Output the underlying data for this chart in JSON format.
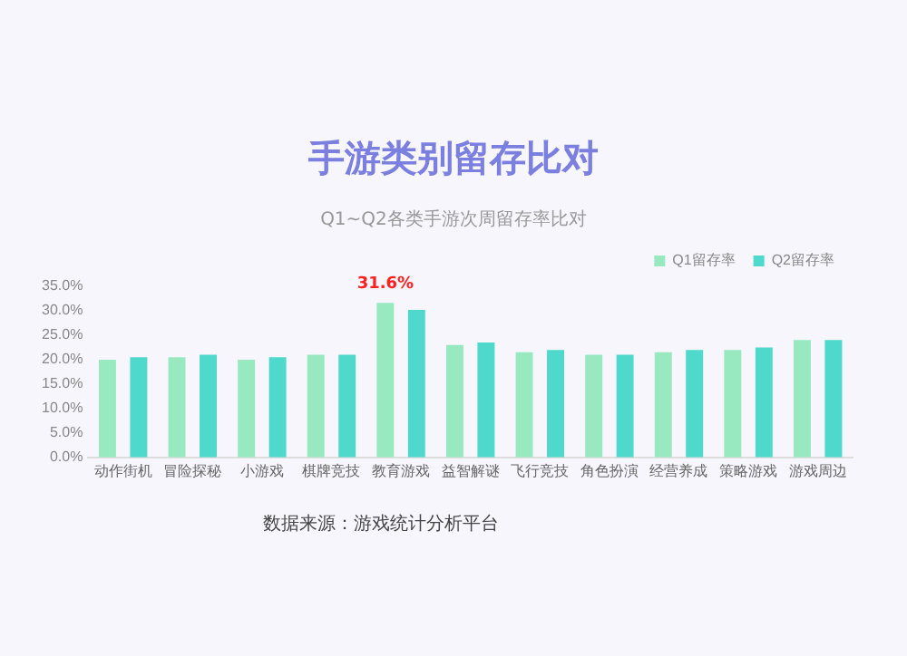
{
  "chart_data": {
    "type": "bar",
    "title": "手游类别留存比对",
    "subtitle": "Q1~Q2各类手游次周留存率比对",
    "categories": [
      "动作街机",
      "冒险探秘",
      "小游戏",
      "棋牌竞技",
      "教育游戏",
      "益智解谜",
      "飞行竞技",
      "角色扮演",
      "经营养成",
      "策略游戏",
      "游戏周边"
    ],
    "series": [
      {
        "name": "Q1留存率",
        "color": "#98e9c0",
        "values": [
          20,
          20.5,
          20,
          21,
          31.6,
          23,
          21.5,
          21,
          21.5,
          22,
          24
        ],
        "value_labels": [
          null,
          null,
          null,
          null,
          "31.6%",
          null,
          null,
          null,
          null,
          null,
          null
        ]
      },
      {
        "name": "Q2留存率",
        "color": "#4fd8cc",
        "values": [
          20.5,
          21,
          20.5,
          21,
          30.2,
          23.5,
          22,
          21,
          22,
          22.5,
          24
        ]
      }
    ],
    "ylim": [
      0,
      35
    ],
    "yticks": [
      {
        "value": 0,
        "label": "0.0%"
      },
      {
        "value": 5,
        "label": "5.0%"
      },
      {
        "value": 10,
        "label": "10.0%"
      },
      {
        "value": 15,
        "label": "15.0%"
      },
      {
        "value": 20,
        "label": "20.0%"
      },
      {
        "value": 25,
        "label": "25.0%"
      },
      {
        "value": 30,
        "label": "30.0%"
      },
      {
        "value": 35,
        "label": "35.0%"
      }
    ],
    "grid": false,
    "legend": "top right",
    "annotations": [
      "数据来源：游戏统计分析平台"
    ]
  }
}
